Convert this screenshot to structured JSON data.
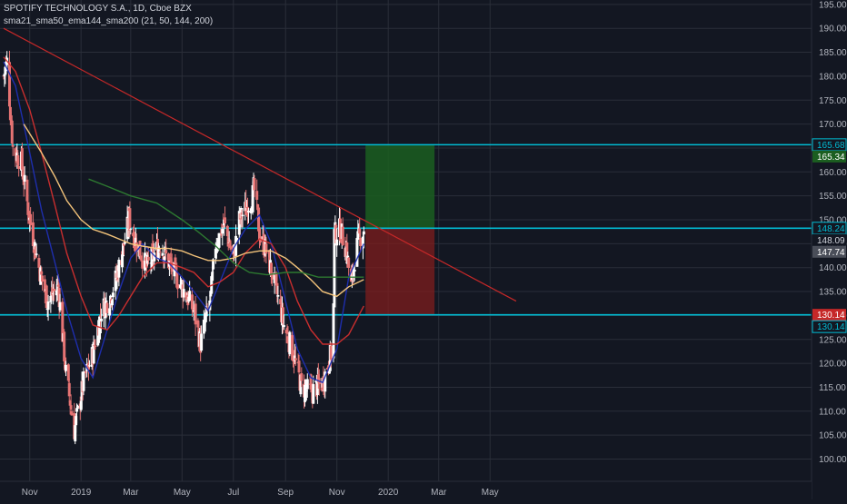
{
  "header": {
    "title": "SPOTIFY TECHNOLOGY S.A., 1D, Cboe BZX",
    "indicators": "sma21_sma50_ema144_sma200 (21, 50, 144, 200)"
  },
  "colors": {
    "background": "#131722",
    "grid": "#2a2e39",
    "up": "#ffffff",
    "down": "#e57373",
    "sma21": "#1f2fb5",
    "sma50": "#d32f2f",
    "ema144": "#ffcc80",
    "sma200": "#2e7d32",
    "hline": "#00bcd4",
    "trendline": "#c62828",
    "target_zone": "#1b5e20",
    "stop_zone": "#7f1d1d",
    "axis_text": "#b2b5be"
  },
  "chart_data": {
    "type": "candlestick",
    "title": "SPOTIFY TECHNOLOGY S.A., 1D, Cboe BZX",
    "x_tick_labels": [
      "Nov",
      "2019",
      "Mar",
      "May",
      "Jul",
      "Sep",
      "Nov",
      "2020",
      "Mar",
      "May"
    ],
    "y_ticks": [
      100,
      105,
      110,
      115,
      120,
      125,
      130,
      135,
      140,
      145,
      150,
      155,
      160,
      165,
      170,
      175,
      180,
      185,
      190,
      195
    ],
    "y_range": [
      97.5,
      196.5
    ],
    "grid": true,
    "price_labels": [
      {
        "value": 165.68,
        "text": "165.68",
        "style": "outline"
      },
      {
        "value": 165.34,
        "text": "165.34",
        "style": "green"
      },
      {
        "value": 148.24,
        "text": "148.24",
        "style": "outline"
      },
      {
        "value": 148.09,
        "text": "148.09",
        "style": "plain"
      },
      {
        "value": 147.74,
        "text": "147.74",
        "style": "gray"
      },
      {
        "value": 130.14,
        "text": "130.14",
        "style": "red"
      },
      {
        "value": 130.14,
        "text": "130.14",
        "style": "outline"
      }
    ],
    "horizontal_lines": [
      165.68,
      148.24,
      130.14
    ],
    "trendline": {
      "start": [
        "2018-10-01",
        190
      ],
      "end": [
        "2020-06-01",
        133
      ]
    },
    "position_tool": {
      "start": "2019-12-05",
      "end": "2020-02-25",
      "entry": 148.24,
      "target": 165.68,
      "stop": 130.14
    },
    "key_closes": [
      [
        "2018-10-01",
        180
      ],
      [
        "2018-10-05",
        183
      ],
      [
        "2018-10-12",
        165
      ],
      [
        "2018-10-22",
        162
      ],
      [
        "2018-11-01",
        150
      ],
      [
        "2018-11-12",
        140
      ],
      [
        "2018-11-22",
        133
      ],
      [
        "2018-12-05",
        136
      ],
      [
        "2018-12-14",
        118
      ],
      [
        "2018-12-24",
        106
      ],
      [
        "2019-01-04",
        116
      ],
      [
        "2019-01-15",
        122
      ],
      [
        "2019-01-25",
        131
      ],
      [
        "2019-02-05",
        134
      ],
      [
        "2019-02-12",
        138
      ],
      [
        "2019-02-20",
        144
      ],
      [
        "2019-02-27",
        150
      ],
      [
        "2019-03-06",
        146
      ],
      [
        "2019-03-20",
        140
      ],
      [
        "2019-04-05",
        145
      ],
      [
        "2019-04-18",
        140
      ],
      [
        "2019-05-01",
        136
      ],
      [
        "2019-05-15",
        131
      ],
      [
        "2019-05-23",
        124
      ],
      [
        "2019-06-04",
        134
      ],
      [
        "2019-06-10",
        145
      ],
      [
        "2019-06-20",
        149
      ],
      [
        "2019-07-01",
        142
      ],
      [
        "2019-07-08",
        150
      ],
      [
        "2019-07-15",
        152
      ],
      [
        "2019-07-26",
        156
      ],
      [
        "2019-08-02",
        146
      ],
      [
        "2019-08-08",
        144
      ],
      [
        "2019-08-20",
        136
      ],
      [
        "2019-08-30",
        128
      ],
      [
        "2019-09-10",
        122
      ],
      [
        "2019-09-20",
        115
      ],
      [
        "2019-10-01",
        114
      ],
      [
        "2019-10-15",
        116
      ],
      [
        "2019-10-25",
        122
      ],
      [
        "2019-10-28",
        132
      ],
      [
        "2019-10-29",
        147
      ],
      [
        "2019-11-05",
        148
      ],
      [
        "2019-11-12",
        144
      ],
      [
        "2019-11-18",
        136
      ],
      [
        "2019-11-22",
        142
      ],
      [
        "2019-11-27",
        146
      ],
      [
        "2019-12-03",
        148
      ]
    ],
    "series": [
      {
        "name": "sma21",
        "points": [
          [
            "2018-10-01",
            183
          ],
          [
            "2018-10-15",
            178
          ],
          [
            "2018-11-01",
            164
          ],
          [
            "2018-11-15",
            152
          ],
          [
            "2018-12-01",
            141
          ],
          [
            "2018-12-15",
            131
          ],
          [
            "2019-01-01",
            121
          ],
          [
            "2019-01-15",
            117
          ],
          [
            "2019-02-01",
            127
          ],
          [
            "2019-02-15",
            135
          ],
          [
            "2019-03-01",
            142
          ],
          [
            "2019-03-15",
            145
          ],
          [
            "2019-04-01",
            142
          ],
          [
            "2019-04-15",
            141
          ],
          [
            "2019-05-01",
            138
          ],
          [
            "2019-05-15",
            135
          ],
          [
            "2019-06-01",
            131
          ],
          [
            "2019-06-15",
            137
          ],
          [
            "2019-07-01",
            144
          ],
          [
            "2019-07-15",
            148
          ],
          [
            "2019-08-01",
            151
          ],
          [
            "2019-08-15",
            145
          ],
          [
            "2019-09-01",
            133
          ],
          [
            "2019-09-15",
            123
          ],
          [
            "2019-10-01",
            117
          ],
          [
            "2019-10-15",
            116
          ],
          [
            "2019-11-01",
            123
          ],
          [
            "2019-11-15",
            138
          ],
          [
            "2019-12-03",
            145
          ]
        ]
      },
      {
        "name": "sma50",
        "points": [
          [
            "2018-10-01",
            184
          ],
          [
            "2018-10-15",
            181
          ],
          [
            "2018-11-01",
            173
          ],
          [
            "2018-11-15",
            164
          ],
          [
            "2018-12-01",
            153
          ],
          [
            "2018-12-15",
            143
          ],
          [
            "2019-01-01",
            134
          ],
          [
            "2019-01-15",
            128
          ],
          [
            "2019-02-01",
            127
          ],
          [
            "2019-02-15",
            130
          ],
          [
            "2019-03-01",
            134
          ],
          [
            "2019-03-15",
            138
          ],
          [
            "2019-04-01",
            141
          ],
          [
            "2019-04-15",
            141
          ],
          [
            "2019-05-01",
            140
          ],
          [
            "2019-05-15",
            139
          ],
          [
            "2019-06-01",
            136
          ],
          [
            "2019-06-15",
            137
          ],
          [
            "2019-07-01",
            139
          ],
          [
            "2019-07-15",
            143
          ],
          [
            "2019-08-01",
            146
          ],
          [
            "2019-08-15",
            145
          ],
          [
            "2019-09-01",
            140
          ],
          [
            "2019-09-15",
            133
          ],
          [
            "2019-10-01",
            127
          ],
          [
            "2019-10-15",
            124
          ],
          [
            "2019-11-01",
            124
          ],
          [
            "2019-11-15",
            126
          ],
          [
            "2019-12-03",
            132
          ]
        ]
      },
      {
        "name": "ema144",
        "points": [
          [
            "2018-10-25",
            170
          ],
          [
            "2018-11-15",
            164
          ],
          [
            "2018-12-01",
            159
          ],
          [
            "2018-12-15",
            154
          ],
          [
            "2019-01-01",
            150
          ],
          [
            "2019-01-15",
            148
          ],
          [
            "2019-02-01",
            147
          ],
          [
            "2019-02-15",
            146
          ],
          [
            "2019-03-01",
            145
          ],
          [
            "2019-03-15",
            144.5
          ],
          [
            "2019-04-01",
            144
          ],
          [
            "2019-04-15",
            144
          ],
          [
            "2019-05-01",
            143.5
          ],
          [
            "2019-05-15",
            142.5
          ],
          [
            "2019-06-01",
            141.5
          ],
          [
            "2019-06-15",
            141.5
          ],
          [
            "2019-07-01",
            142
          ],
          [
            "2019-07-15",
            143
          ],
          [
            "2019-08-01",
            143.5
          ],
          [
            "2019-08-15",
            143.5
          ],
          [
            "2019-09-01",
            142
          ],
          [
            "2019-09-15",
            140
          ],
          [
            "2019-10-01",
            137.5
          ],
          [
            "2019-10-15",
            135
          ],
          [
            "2019-11-01",
            134
          ],
          [
            "2019-11-15",
            136
          ],
          [
            "2019-12-03",
            137.5
          ]
        ]
      },
      {
        "name": "sma200",
        "points": [
          [
            "2019-01-10",
            158.5
          ],
          [
            "2019-02-01",
            157
          ],
          [
            "2019-03-01",
            155
          ],
          [
            "2019-04-01",
            153.5
          ],
          [
            "2019-05-01",
            150
          ],
          [
            "2019-05-20",
            147.5
          ],
          [
            "2019-06-10",
            144.5
          ],
          [
            "2019-07-01",
            141
          ],
          [
            "2019-07-20",
            139
          ],
          [
            "2019-08-10",
            138.5
          ],
          [
            "2019-09-01",
            139
          ],
          [
            "2019-09-20",
            139
          ],
          [
            "2019-10-10",
            138
          ],
          [
            "2019-11-01",
            138
          ],
          [
            "2019-12-03",
            138
          ]
        ]
      }
    ]
  }
}
